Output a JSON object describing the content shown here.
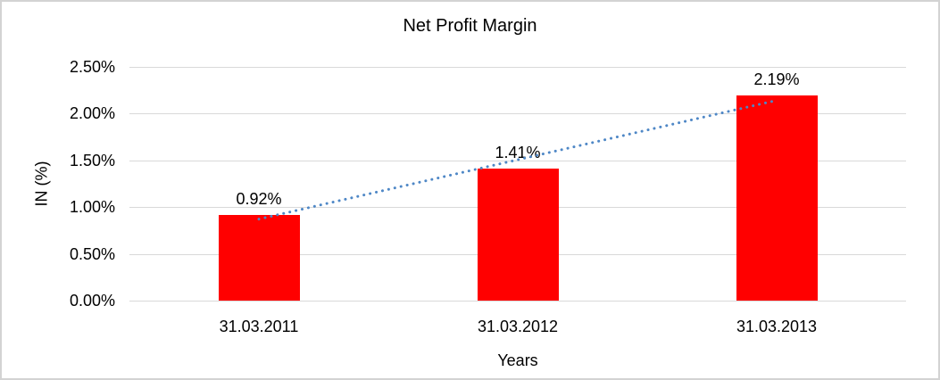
{
  "chart_data": {
    "type": "bar",
    "title": "Net Profit Margin",
    "xlabel": "Years",
    "ylabel": "IN (%)",
    "categories": [
      "31.03.2011",
      "31.03.2012",
      "31.03.2013"
    ],
    "values": [
      0.92,
      1.41,
      2.19
    ],
    "data_labels": [
      "0.92%",
      "1.41%",
      "2.19%"
    ],
    "series_name": "Net Profit Margin",
    "ylim": [
      0,
      2.5
    ],
    "yticks": [
      {
        "value": 0.0,
        "label": "0.00%"
      },
      {
        "value": 0.5,
        "label": "0.50%"
      },
      {
        "value": 1.0,
        "label": "1.00%"
      },
      {
        "value": 1.5,
        "label": "1.50%"
      },
      {
        "value": 2.0,
        "label": "2.00%"
      },
      {
        "value": 2.5,
        "label": "2.50%"
      }
    ],
    "grid": true,
    "legend": "none",
    "colors": {
      "bar": "#ff0000",
      "gridline": "#d9d9d9",
      "trendline": "#4e87c6",
      "text": "#000000",
      "frame_border": "#d3d3d3"
    },
    "trendline": {
      "type": "linear",
      "style": "dotted",
      "color": "#4e87c6",
      "start_value": 0.872,
      "end_value": 2.142
    }
  }
}
